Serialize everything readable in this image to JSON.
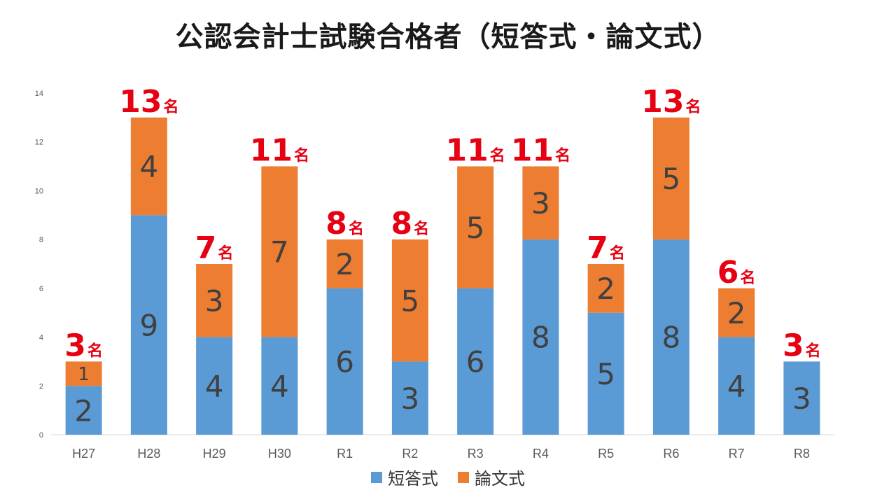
{
  "chart_data": {
    "type": "bar",
    "stacked": true,
    "title": "公認会計士試験合格者（短答式・論文式）",
    "categories": [
      "H27",
      "H28",
      "H29",
      "H30",
      "R1",
      "R2",
      "R3",
      "R4",
      "R5",
      "R6",
      "R7",
      "R8"
    ],
    "series": [
      {
        "name": "短答式",
        "color": "#5b9bd5",
        "values": [
          2,
          9,
          4,
          4,
          6,
          3,
          6,
          8,
          5,
          8,
          4,
          3
        ]
      },
      {
        "name": "論文式",
        "color": "#ed7d31",
        "values": [
          1,
          4,
          3,
          7,
          2,
          5,
          5,
          3,
          2,
          5,
          2,
          0
        ]
      }
    ],
    "totals": [
      3,
      13,
      7,
      11,
      8,
      8,
      11,
      11,
      7,
      13,
      6,
      3
    ],
    "total_suffix": "名",
    "total_color": "#e60012",
    "ylim": [
      0,
      14
    ],
    "yticks": [
      0,
      2,
      4,
      6,
      8,
      10,
      12,
      14
    ],
    "grid": false,
    "legend_position": "bottom",
    "xlabel": "",
    "ylabel": ""
  }
}
